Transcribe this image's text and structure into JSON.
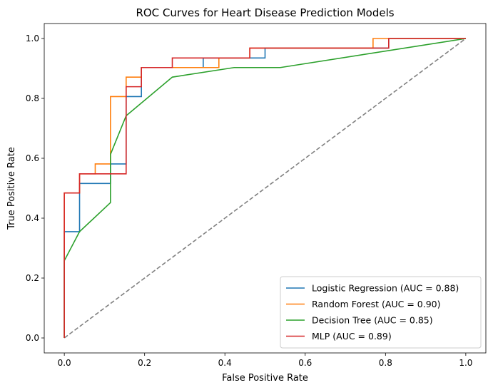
{
  "chart_data": {
    "type": "line",
    "title": "ROC Curves for Heart Disease Prediction Models",
    "xlabel": "False Positive Rate",
    "ylabel": "True Positive Rate",
    "xlim": [
      -0.05,
      1.05
    ],
    "ylim": [
      -0.05,
      1.05
    ],
    "x_ticks": [
      "0.0",
      "0.2",
      "0.4",
      "0.6",
      "0.8",
      "1.0"
    ],
    "y_ticks": [
      "0.0",
      "0.2",
      "0.4",
      "0.6",
      "0.8",
      "1.0"
    ],
    "grid": false,
    "legend_position": "lower-right",
    "series": [
      {
        "name": "Logistic Regression (AUC = 0.88)",
        "color": "#1f77b4",
        "x": [
          0,
          0,
          0.038,
          0.038,
          0.115,
          0.115,
          0.154,
          0.154,
          0.192,
          0.192,
          0.346,
          0.346,
          0.5,
          0.5,
          0.808,
          0.808,
          1.0
        ],
        "y": [
          0,
          0.355,
          0.355,
          0.516,
          0.516,
          0.581,
          0.581,
          0.806,
          0.806,
          0.903,
          0.903,
          0.935,
          0.935,
          0.968,
          0.968,
          1.0,
          1.0
        ]
      },
      {
        "name": "Random Forest (AUC = 0.90)",
        "color": "#ff7f0e",
        "x": [
          0,
          0,
          0.038,
          0.038,
          0.077,
          0.077,
          0.115,
          0.115,
          0.154,
          0.154,
          0.192,
          0.192,
          0.385,
          0.385,
          0.462,
          0.462,
          0.769,
          0.769,
          1.0
        ],
        "y": [
          0,
          0.484,
          0.484,
          0.548,
          0.548,
          0.581,
          0.581,
          0.806,
          0.806,
          0.871,
          0.871,
          0.903,
          0.903,
          0.935,
          0.935,
          0.968,
          0.968,
          1.0,
          1.0
        ]
      },
      {
        "name": "Decision Tree (AUC = 0.85)",
        "color": "#2ca02c",
        "x": [
          0,
          0,
          0.038,
          0.115,
          0.115,
          0.154,
          0.269,
          0.423,
          0.538,
          1.0
        ],
        "y": [
          0,
          0.258,
          0.355,
          0.452,
          0.613,
          0.742,
          0.871,
          0.903,
          0.903,
          1.0
        ]
      },
      {
        "name": "MLP (AUC = 0.89)",
        "color": "#d62728",
        "x": [
          0,
          0,
          0.038,
          0.038,
          0.154,
          0.154,
          0.192,
          0.192,
          0.269,
          0.269,
          0.462,
          0.462,
          0.808,
          0.808,
          1.0
        ],
        "y": [
          0,
          0.484,
          0.484,
          0.548,
          0.548,
          0.839,
          0.839,
          0.903,
          0.903,
          0.935,
          0.935,
          0.968,
          0.968,
          1.0,
          1.0
        ]
      }
    ],
    "reference_line": {
      "color": "#808080",
      "style": "dashed",
      "x": [
        0,
        1
      ],
      "y": [
        0,
        1
      ]
    }
  }
}
